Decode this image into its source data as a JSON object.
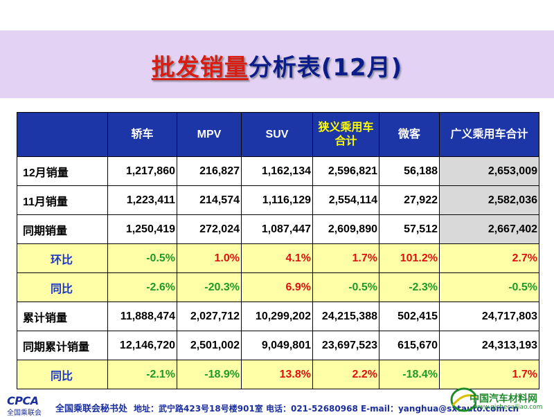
{
  "title": {
    "highlight": "批发销量",
    "rest": "分析表(12月)"
  },
  "table": {
    "headers": [
      "",
      "轿车",
      "MPV",
      "SUV",
      "狭义乘用车合计",
      "微客",
      "广义乘用车合计"
    ],
    "rows": [
      {
        "label": "12月销量",
        "values": [
          "1,217,860",
          "216,827",
          "1,162,134",
          "2,596,821",
          "56,188",
          "2,653,009"
        ]
      },
      {
        "label": "11月销量",
        "values": [
          "1,223,411",
          "214,574",
          "1,116,129",
          "2,554,114",
          "27,922",
          "2,582,036"
        ]
      },
      {
        "label": "同期销量",
        "values": [
          "1,250,419",
          "272,024",
          "1,087,447",
          "2,609,890",
          "57,512",
          "2,667,402"
        ]
      },
      {
        "label": "环比",
        "values": [
          "-0.5%",
          "1.0%",
          "4.1%",
          "1.7%",
          "101.2%",
          "2.7%"
        ]
      },
      {
        "label": "同比",
        "values": [
          "-2.6%",
          "-20.3%",
          "6.9%",
          "-0.5%",
          "-2.3%",
          "-0.5%"
        ]
      },
      {
        "label": "累计销量",
        "values": [
          "11,888,474",
          "2,027,712",
          "10,299,202",
          "24,215,388",
          "502,415",
          "24,717,803"
        ]
      },
      {
        "label": "同期累计销量",
        "values": [
          "12,146,720",
          "2,501,002",
          "9,049,801",
          "23,697,523",
          "615,670",
          "24,313,193"
        ]
      },
      {
        "label": "同比",
        "values": [
          "-2.1%",
          "-18.9%",
          "13.8%",
          "2.2%",
          "-18.4%",
          "1.7%"
        ]
      }
    ]
  },
  "colors": {
    "header_bg": "#1c36a8",
    "highlight_header_text": "#ffff00",
    "positive": "#e01010",
    "negative": "#1e9a28",
    "ratio_row_bg": "#ffffa8",
    "title_band": "#e3d2f4"
  },
  "footer": {
    "logo_text": "CPCA",
    "logo_sub": "全国乘联会",
    "secretariat": "全国乘联会秘书处",
    "contact": "地址：武宁路423号18号楼901室   电话：021-52680968  E-mail：yanghua@sxtauto.com.cn"
  },
  "watermark": {
    "text": "中国汽车材料网",
    "url": "www.qichecailiao.com"
  }
}
